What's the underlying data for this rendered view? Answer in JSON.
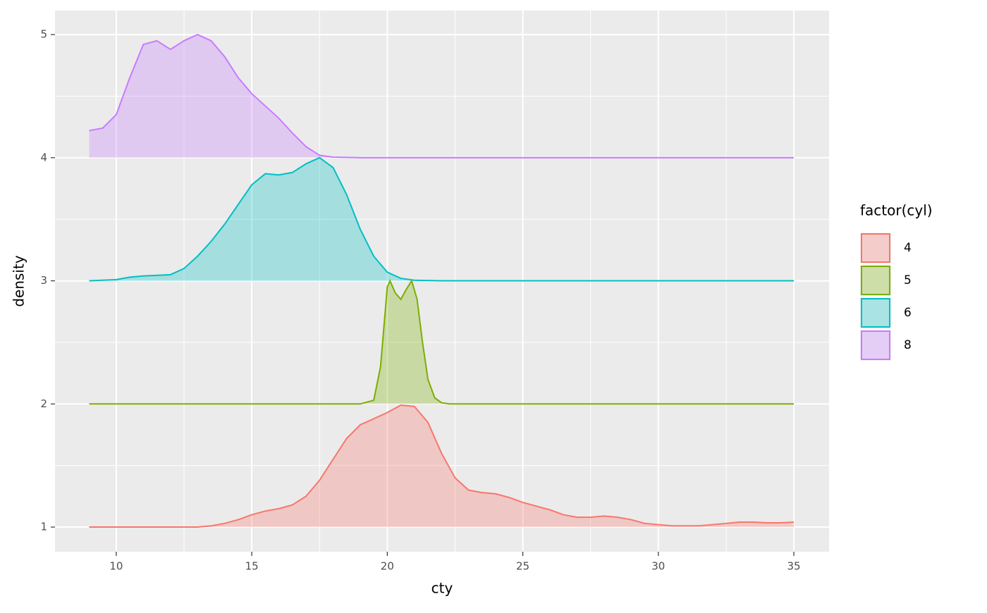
{
  "chart_data": {
    "type": "ridgeline",
    "x_label": "cty",
    "y_label": "density",
    "xlim": [
      7.74,
      36.3
    ],
    "ylim": [
      0.8,
      5.195
    ],
    "xticks": [
      10,
      15,
      20,
      25,
      30,
      35
    ],
    "yticks": [
      1,
      2,
      3,
      4,
      5
    ],
    "xminorticks": [
      12.5,
      17.5,
      22.5,
      27.5,
      32.5
    ],
    "yminorticks": [
      1.5,
      2.5,
      3.5,
      4.5
    ],
    "grid": true,
    "legend_title": "factor(cyl)",
    "legend_position": "right",
    "series": [
      {
        "name": "4",
        "color": "#F8766D",
        "x": [
          9,
          9.5,
          10,
          10.5,
          11,
          11.5,
          12,
          12.5,
          13,
          13.5,
          14,
          14.5,
          15,
          15.5,
          16,
          16.5,
          17,
          17.5,
          18,
          18.5,
          19,
          19.5,
          20,
          20.5,
          21,
          21.5,
          22,
          22.5,
          23,
          23.5,
          24,
          24.5,
          25,
          25.5,
          26,
          26.5,
          27,
          27.5,
          28,
          28.5,
          29,
          29.5,
          30,
          30.5,
          31,
          31.5,
          32,
          32.5,
          33,
          33.5,
          34,
          34.5,
          35
        ],
        "values": [
          1.0,
          1.0,
          1.0,
          1.0,
          1.0,
          1.0,
          1.0,
          1.0,
          1.0,
          1.01,
          1.03,
          1.06,
          1.1,
          1.13,
          1.15,
          1.18,
          1.25,
          1.38,
          1.55,
          1.72,
          1.83,
          1.88,
          1.93,
          1.99,
          1.98,
          1.85,
          1.6,
          1.4,
          1.3,
          1.28,
          1.27,
          1.24,
          1.2,
          1.17,
          1.14,
          1.1,
          1.08,
          1.08,
          1.09,
          1.08,
          1.06,
          1.03,
          1.02,
          1.01,
          1.01,
          1.01,
          1.02,
          1.03,
          1.04,
          1.04,
          1.035,
          1.035,
          1.04
        ]
      },
      {
        "name": "5",
        "color": "#7CAE00",
        "x": [
          9,
          19,
          19.5,
          19.75,
          20,
          20.1,
          20.3,
          20.5,
          20.7,
          20.9,
          21.1,
          21.3,
          21.5,
          21.75,
          22,
          22.3,
          35
        ],
        "values": [
          2.0,
          2.0,
          2.03,
          2.3,
          2.95,
          3.0,
          2.9,
          2.85,
          2.93,
          3.0,
          2.85,
          2.5,
          2.2,
          2.05,
          2.01,
          2.0,
          2.0
        ]
      },
      {
        "name": "6",
        "color": "#00BFC4",
        "x": [
          9,
          10,
          10.5,
          11,
          12,
          12.5,
          13,
          13.5,
          14,
          14.5,
          15,
          15.5,
          16,
          16.5,
          17,
          17.5,
          18,
          18.5,
          19,
          19.5,
          20,
          20.5,
          21,
          22,
          35
        ],
        "values": [
          3.0,
          3.01,
          3.03,
          3.04,
          3.05,
          3.1,
          3.2,
          3.32,
          3.46,
          3.62,
          3.78,
          3.87,
          3.86,
          3.88,
          3.95,
          4.0,
          3.92,
          3.7,
          3.42,
          3.2,
          3.07,
          3.02,
          3.005,
          3.0,
          3.0
        ]
      },
      {
        "name": "8",
        "color": "#C77CFF",
        "x": [
          9,
          9.5,
          10,
          10.5,
          11,
          11.5,
          12,
          12.5,
          13,
          13.5,
          14,
          14.5,
          15,
          15.5,
          16,
          16.5,
          17,
          17.5,
          18,
          19,
          35
        ],
        "values": [
          4.22,
          4.24,
          4.35,
          4.65,
          4.92,
          4.95,
          4.88,
          4.95,
          5.0,
          4.95,
          4.82,
          4.65,
          4.52,
          4.42,
          4.32,
          4.2,
          4.09,
          4.02,
          4.005,
          4.0,
          4.0
        ]
      }
    ]
  }
}
